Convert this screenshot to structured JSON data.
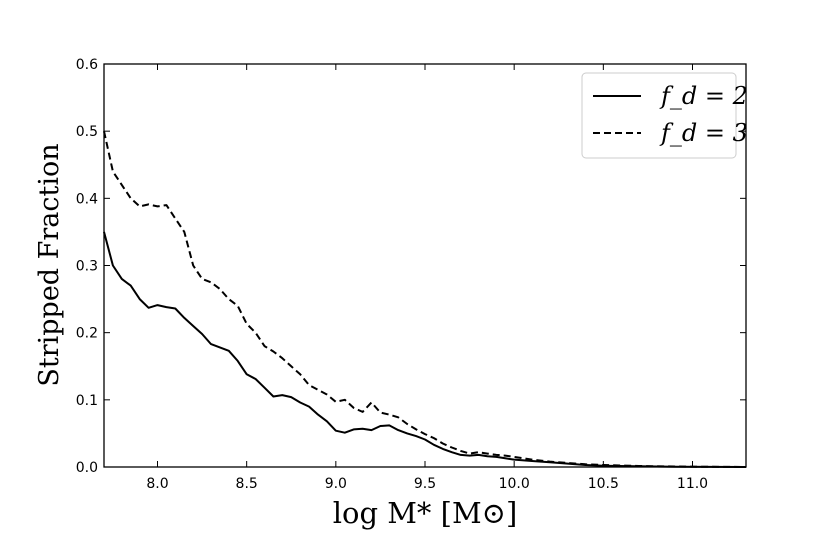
{
  "chart_data": {
    "type": "line",
    "title": "",
    "xlabel": "log M* [M⊙]",
    "ylabel": "Stripped Fraction",
    "xlim": [
      7.7,
      11.3
    ],
    "ylim": [
      0.0,
      0.6
    ],
    "x_ticks": [
      8.0,
      8.5,
      9.0,
      9.5,
      10.0,
      10.5,
      11.0
    ],
    "x_tick_labels": [
      "8.0",
      "8.5",
      "9.0",
      "9.5",
      "10.0",
      "10.5",
      "11.0"
    ],
    "y_ticks": [
      0.0,
      0.1,
      0.2,
      0.3,
      0.4,
      0.5,
      0.6
    ],
    "y_tick_labels": [
      "0.0",
      "0.1",
      "0.2",
      "0.3",
      "0.4",
      "0.5",
      "0.6"
    ],
    "grid": false,
    "legend_position": "top-right",
    "series": [
      {
        "name": "fd = 2",
        "legend_label": "f_d = 2",
        "style": "solid",
        "color": "#000000",
        "x": [
          7.7,
          7.75,
          7.8,
          7.85,
          7.9,
          7.95,
          8.0,
          8.05,
          8.1,
          8.15,
          8.2,
          8.25,
          8.3,
          8.35,
          8.4,
          8.45,
          8.5,
          8.55,
          8.6,
          8.65,
          8.7,
          8.75,
          8.8,
          8.85,
          8.9,
          8.95,
          9.0,
          9.05,
          9.1,
          9.15,
          9.2,
          9.25,
          9.3,
          9.35,
          9.4,
          9.45,
          9.5,
          9.55,
          9.6,
          9.65,
          9.7,
          9.75,
          9.8,
          9.85,
          9.9,
          9.95,
          10.0,
          10.1,
          10.2,
          10.3,
          10.4,
          10.5,
          10.7,
          10.9,
          11.1,
          11.3
        ],
        "values": [
          0.35,
          0.3,
          0.28,
          0.27,
          0.25,
          0.237,
          0.241,
          0.238,
          0.236,
          0.222,
          0.21,
          0.198,
          0.183,
          0.178,
          0.173,
          0.158,
          0.138,
          0.131,
          0.118,
          0.105,
          0.107,
          0.104,
          0.096,
          0.09,
          0.078,
          0.068,
          0.054,
          0.051,
          0.056,
          0.057,
          0.055,
          0.061,
          0.062,
          0.055,
          0.05,
          0.046,
          0.041,
          0.033,
          0.027,
          0.022,
          0.018,
          0.017,
          0.018,
          0.016,
          0.015,
          0.013,
          0.011,
          0.009,
          0.007,
          0.005,
          0.003,
          0.002,
          0.001,
          0.0005,
          0.0002,
          0.0
        ]
      },
      {
        "name": "fd = 3",
        "legend_label": "f_d = 3",
        "style": "dashed",
        "color": "#000000",
        "x": [
          7.7,
          7.75,
          7.8,
          7.85,
          7.9,
          7.95,
          8.0,
          8.05,
          8.1,
          8.15,
          8.2,
          8.25,
          8.3,
          8.35,
          8.4,
          8.45,
          8.5,
          8.55,
          8.6,
          8.65,
          8.7,
          8.75,
          8.8,
          8.85,
          8.9,
          8.95,
          9.0,
          9.05,
          9.1,
          9.15,
          9.2,
          9.25,
          9.3,
          9.35,
          9.4,
          9.45,
          9.5,
          9.55,
          9.6,
          9.65,
          9.7,
          9.75,
          9.8,
          9.85,
          9.9,
          9.95,
          10.0,
          10.1,
          10.2,
          10.3,
          10.4,
          10.5,
          10.7,
          10.9,
          11.1,
          11.3
        ],
        "values": [
          0.5,
          0.44,
          0.42,
          0.4,
          0.388,
          0.391,
          0.388,
          0.39,
          0.37,
          0.35,
          0.3,
          0.28,
          0.275,
          0.265,
          0.25,
          0.24,
          0.213,
          0.2,
          0.18,
          0.172,
          0.162,
          0.15,
          0.138,
          0.122,
          0.115,
          0.108,
          0.097,
          0.1,
          0.088,
          0.082,
          0.096,
          0.081,
          0.078,
          0.074,
          0.064,
          0.056,
          0.049,
          0.043,
          0.035,
          0.029,
          0.024,
          0.02,
          0.022,
          0.02,
          0.018,
          0.017,
          0.015,
          0.011,
          0.008,
          0.006,
          0.004,
          0.003,
          0.0015,
          0.0007,
          0.0003,
          0.0
        ]
      }
    ]
  }
}
